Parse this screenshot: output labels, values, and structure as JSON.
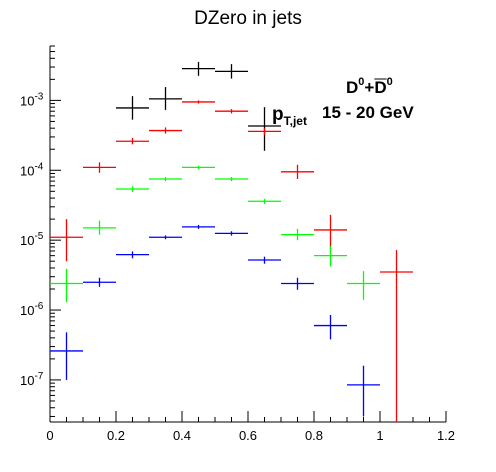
{
  "chart_data": {
    "type": "scatter",
    "title": "DZero in jets",
    "xlabel": "",
    "ylabel": "",
    "xlim": [
      0,
      1.2
    ],
    "ylim": [
      2.5e-08,
      0.006
    ],
    "log_y": true,
    "grid": false,
    "x_ticks": [
      "0",
      "0.2",
      "0.4",
      "0.6",
      "0.8",
      "1",
      "1.2"
    ],
    "y_tick_labels": [
      {
        "base": "10",
        "exp": "-7",
        "value": 1e-07
      },
      {
        "base": "10",
        "exp": "-6",
        "value": 1e-06
      },
      {
        "base": "10",
        "exp": "-5",
        "value": 1e-05
      },
      {
        "base": "10",
        "exp": "-4",
        "value": 0.0001
      },
      {
        "base": "10",
        "exp": "-3",
        "value": 0.001
      }
    ],
    "annotation": {
      "particle_base": "D",
      "particle_sup": "0",
      "plus": "+",
      "anti_base": "D",
      "anti_sup": "0",
      "pt_base": "p",
      "pt_sub": "T,jet",
      "range": "15 - 20 GeV"
    },
    "series": [
      {
        "color": "#000000",
        "points": [
          {
            "x": 0.25,
            "xerr": 0.05,
            "y": 0.00078,
            "ylo": 0.00053,
            "yhi": 0.00115
          },
          {
            "x": 0.35,
            "xerr": 0.05,
            "y": 0.00105,
            "ylo": 0.00073,
            "yhi": 0.00155
          },
          {
            "x": 0.45,
            "xerr": 0.05,
            "y": 0.00285,
            "ylo": 0.00225,
            "yhi": 0.00355
          },
          {
            "x": 0.55,
            "xerr": 0.05,
            "y": 0.0026,
            "ylo": 0.00205,
            "yhi": 0.0033
          },
          {
            "x": 0.65,
            "xerr": 0.05,
            "y": 0.00043,
            "ylo": 0.00019,
            "yhi": 0.0008
          }
        ]
      },
      {
        "color": "#ff0000",
        "points": [
          {
            "x": 0.05,
            "xerr": 0.05,
            "y": 1.1e-05,
            "ylo": 5e-06,
            "yhi": 2e-05
          },
          {
            "x": 0.15,
            "xerr": 0.05,
            "y": 0.00011,
            "ylo": 9.2e-05,
            "yhi": 0.00013
          },
          {
            "x": 0.25,
            "xerr": 0.05,
            "y": 0.00026,
            "ylo": 0.000235,
            "yhi": 0.00029
          },
          {
            "x": 0.35,
            "xerr": 0.05,
            "y": 0.00037,
            "ylo": 0.000335,
            "yhi": 0.00041
          },
          {
            "x": 0.45,
            "xerr": 0.05,
            "y": 0.00095,
            "ylo": 0.0009,
            "yhi": 0.001
          },
          {
            "x": 0.55,
            "xerr": 0.05,
            "y": 0.0007,
            "ylo": 0.00065,
            "yhi": 0.00075
          },
          {
            "x": 0.65,
            "xerr": 0.05,
            "y": 0.00036,
            "ylo": 0.00032,
            "yhi": 0.0004
          },
          {
            "x": 0.75,
            "xerr": 0.05,
            "y": 9.5e-05,
            "ylo": 7.5e-05,
            "yhi": 0.00012
          },
          {
            "x": 0.85,
            "xerr": 0.05,
            "y": 1.4e-05,
            "ylo": 7.5e-06,
            "yhi": 2.3e-05
          },
          {
            "x": 1.05,
            "xerr": 0.05,
            "y": 3.5e-06,
            "ylo": 2.5e-08,
            "yhi": 7.2e-06
          }
        ]
      },
      {
        "color": "#00ff00",
        "points": [
          {
            "x": 0.05,
            "xerr": 0.05,
            "y": 2.4e-06,
            "ylo": 1.3e-06,
            "yhi": 3.9e-06
          },
          {
            "x": 0.15,
            "xerr": 0.05,
            "y": 1.5e-05,
            "ylo": 1.2e-05,
            "yhi": 1.9e-05
          },
          {
            "x": 0.25,
            "xerr": 0.05,
            "y": 5.4e-05,
            "ylo": 4.9e-05,
            "yhi": 5.9e-05
          },
          {
            "x": 0.35,
            "xerr": 0.05,
            "y": 7.5e-05,
            "ylo": 7e-05,
            "yhi": 8e-05
          },
          {
            "x": 0.45,
            "xerr": 0.05,
            "y": 0.00011,
            "ylo": 0.000104,
            "yhi": 0.000116
          },
          {
            "x": 0.55,
            "xerr": 0.05,
            "y": 7.5e-05,
            "ylo": 7e-05,
            "yhi": 8e-05
          },
          {
            "x": 0.65,
            "xerr": 0.05,
            "y": 3.6e-05,
            "ylo": 3.3e-05,
            "yhi": 3.9e-05
          },
          {
            "x": 0.75,
            "xerr": 0.05,
            "y": 1.2e-05,
            "ylo": 1e-05,
            "yhi": 1.45e-05
          },
          {
            "x": 0.85,
            "xerr": 0.05,
            "y": 6e-06,
            "ylo": 4.2e-06,
            "yhi": 8.2e-06
          },
          {
            "x": 0.95,
            "xerr": 0.05,
            "y": 2.4e-06,
            "ylo": 1.4e-06,
            "yhi": 3.6e-06
          }
        ]
      },
      {
        "color": "#0000ff",
        "points": [
          {
            "x": 0.05,
            "xerr": 0.05,
            "y": 2.6e-07,
            "ylo": 1e-07,
            "yhi": 4.8e-07
          },
          {
            "x": 0.15,
            "xerr": 0.05,
            "y": 2.5e-06,
            "ylo": 2.15e-06,
            "yhi": 2.9e-06
          },
          {
            "x": 0.25,
            "xerr": 0.05,
            "y": 6.2e-06,
            "ylo": 5.5e-06,
            "yhi": 6.9e-06
          },
          {
            "x": 0.35,
            "xerr": 0.05,
            "y": 1.1e-05,
            "ylo": 1.03e-05,
            "yhi": 1.17e-05
          },
          {
            "x": 0.45,
            "xerr": 0.05,
            "y": 1.55e-05,
            "ylo": 1.45e-05,
            "yhi": 1.65e-05
          },
          {
            "x": 0.55,
            "xerr": 0.05,
            "y": 1.25e-05,
            "ylo": 1.16e-05,
            "yhi": 1.34e-05
          },
          {
            "x": 0.65,
            "xerr": 0.05,
            "y": 5.2e-06,
            "ylo": 4.6e-06,
            "yhi": 5.8e-06
          },
          {
            "x": 0.75,
            "xerr": 0.05,
            "y": 2.4e-06,
            "ylo": 1.95e-06,
            "yhi": 2.9e-06
          },
          {
            "x": 0.85,
            "xerr": 0.05,
            "y": 6e-07,
            "ylo": 3.8e-07,
            "yhi": 8.5e-07
          },
          {
            "x": 0.95,
            "xerr": 0.05,
            "y": 8.5e-08,
            "ylo": 3e-08,
            "yhi": 1.6e-07
          }
        ]
      }
    ]
  }
}
